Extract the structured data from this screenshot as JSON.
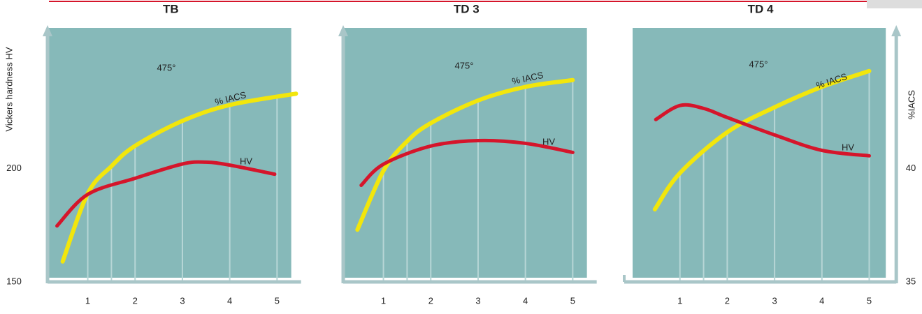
{
  "chart_data": [
    {
      "type": "line",
      "title": "TB",
      "annotation": "475°",
      "xlim": [
        0.15,
        5.3
      ],
      "xticks": [
        1,
        2,
        3,
        4,
        5
      ],
      "xgrid": [
        1,
        1.5,
        2,
        3,
        4,
        5
      ],
      "ylim": [
        150,
        262
      ],
      "y2lim": [
        35,
        46.2
      ],
      "ylabel": "Vickers hardness HV",
      "yticks": [
        150,
        200
      ],
      "series": [
        {
          "name": "% IACS",
          "color": "#f2e60c",
          "axis": "y2",
          "x": [
            0.47,
            1,
            1.5,
            2,
            3,
            4,
            5.4
          ],
          "values": [
            35.9,
            38.9,
            40.1,
            41.0,
            42.1,
            42.8,
            43.3
          ]
        },
        {
          "name": "HV",
          "color": "#d5152b",
          "x": [
            0.35,
            1,
            2,
            3,
            3.5,
            4,
            4.95
          ],
          "values": [
            174.7,
            188.6,
            195.7,
            202,
            202.8,
            201.5,
            197.5
          ]
        }
      ]
    },
    {
      "type": "line",
      "title": "TD 3",
      "annotation": "475°",
      "xlim": [
        0.15,
        5.3
      ],
      "xticks": [
        1,
        2,
        3,
        4,
        5
      ],
      "xgrid": [
        1,
        1.5,
        2,
        3,
        4,
        5
      ],
      "ylim": [
        150,
        262
      ],
      "y2lim": [
        35,
        46.2
      ],
      "series": [
        {
          "name": "% IACS",
          "color": "#f2e60c",
          "axis": "y2",
          "x": [
            0.45,
            1,
            1.5,
            2,
            3,
            4,
            5
          ],
          "values": [
            37.3,
            39.9,
            41.2,
            42.0,
            43.0,
            43.6,
            43.9
          ]
        },
        {
          "name": "HV",
          "color": "#d5152b",
          "x": [
            0.53,
            1,
            2,
            3,
            4,
            5
          ],
          "values": [
            192.6,
            201.9,
            209.9,
            212.3,
            211.1,
            207.1
          ]
        }
      ]
    },
    {
      "type": "line",
      "title": "TD 4",
      "annotation": "475°",
      "xlim": [
        0,
        5.35
      ],
      "xticks": [
        1,
        2,
        3,
        4,
        5
      ],
      "xgrid": [
        1,
        1.5,
        2,
        3,
        4,
        5
      ],
      "ylim": [
        150,
        262
      ],
      "y2lim": [
        35,
        46.2
      ],
      "y2label": "%IACS",
      "y2ticks": [
        35,
        40
      ],
      "series": [
        {
          "name": "% IACS",
          "color": "#f2e60c",
          "axis": "y2",
          "x": [
            0.47,
            1,
            2,
            3,
            4,
            5
          ],
          "values": [
            38.2,
            39.8,
            41.6,
            42.7,
            43.6,
            44.3
          ]
        },
        {
          "name": "HV",
          "color": "#d5152b",
          "x": [
            0.49,
            1,
            1.5,
            2,
            3,
            4,
            5
          ],
          "values": [
            221.6,
            227.8,
            226.5,
            222.5,
            214.8,
            208,
            205.6
          ]
        }
      ]
    }
  ]
}
